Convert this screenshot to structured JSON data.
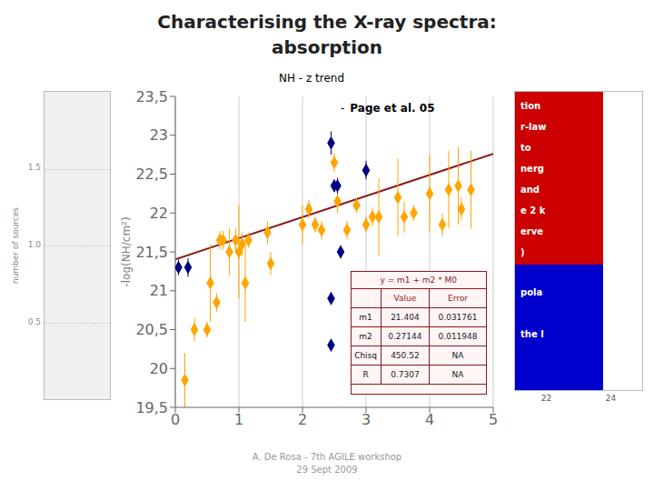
{
  "chart_data": {
    "type": "scatter",
    "title": "Characterising the X-ray spectra:",
    "subtitle": "absorption",
    "chart_title": "NH - z trend",
    "ylabel": "-log(NH/cm²)",
    "xlim": [
      0,
      5
    ],
    "ylim": [
      19.5,
      23.5
    ],
    "xticks": [
      0,
      1,
      2,
      3,
      4,
      5
    ],
    "yticks": [
      {
        "value": 19.5,
        "label": "19,5"
      },
      20,
      {
        "value": 20.5,
        "label": "20,5"
      },
      21,
      {
        "value": 21.5,
        "label": "21,5"
      },
      22,
      {
        "value": 22.5,
        "label": "22,5"
      },
      23,
      {
        "value": 23.5,
        "label": "23,5"
      }
    ],
    "grid": "x",
    "series": [
      {
        "type": "line",
        "color": "#8b1a1a",
        "x": [
          0,
          5
        ],
        "values": [
          21.404,
          22.7612
        ]
      },
      {
        "type": "scatter",
        "color": "#ffa500",
        "marker": "diamond",
        "x": [
          0.15,
          0.3,
          0.5,
          0.55,
          0.65,
          0.7,
          0.75,
          0.85,
          0.95,
          1.0,
          1.05,
          1.1,
          1.15,
          1.45,
          1.5,
          2.0,
          2.1,
          2.2,
          2.3,
          2.5,
          2.55,
          2.7,
          2.85,
          3.0,
          3.1,
          3.2,
          3.5,
          3.6,
          3.75,
          4.0,
          4.2,
          4.3,
          4.45,
          4.5,
          4.65
        ],
        "values": [
          19.85,
          20.5,
          20.5,
          21.1,
          20.85,
          21.65,
          21.65,
          21.5,
          21.65,
          21.5,
          21.6,
          21.1,
          21.65,
          21.75,
          21.35,
          21.85,
          22.05,
          21.85,
          21.78,
          22.65,
          22.15,
          21.78,
          22.1,
          21.85,
          21.95,
          21.95,
          22.2,
          21.95,
          22.0,
          22.25,
          21.85,
          22.3,
          22.35,
          22.05,
          22.3
        ],
        "yerr": [
          0.35,
          0.15,
          0.1,
          0.5,
          0.12,
          0.12,
          0.12,
          0.3,
          0.15,
          0.6,
          0.15,
          0.5,
          0.1,
          0.15,
          0.15,
          0.25,
          0.12,
          0.1,
          0.12,
          0.12,
          0.15,
          0.12,
          0.1,
          0.1,
          0.12,
          0.5,
          0.5,
          0.2,
          0.1,
          0.5,
          0.15,
          0.5,
          0.5,
          0.15,
          0.5
        ]
      },
      {
        "type": "scatter",
        "color": "#000080",
        "marker": "diamond",
        "x": [
          0.05,
          0.2,
          2.45,
          2.45,
          2.45,
          2.5,
          2.55,
          2.6,
          3.0
        ],
        "values": [
          21.3,
          21.3,
          22.9,
          20.9,
          20.3,
          22.35,
          22.35,
          21.5,
          22.55
        ],
        "yerr": [
          0.1,
          0.12,
          0.15,
          0.08,
          0.08,
          0.08,
          0.1,
          0.08,
          0.12
        ]
      }
    ],
    "annotations": [
      "-",
      "Page et al. 05"
    ],
    "table": {
      "title": "y = m1 + m2 * M0",
      "color": "#8b1a1a",
      "rows": [
        [
          null,
          "Value",
          "Error"
        ],
        [
          "m1",
          "21.404",
          "0.031761"
        ],
        [
          "m2",
          "0.27144",
          "0.011948"
        ],
        [
          "Chisq",
          "450.52",
          "NA"
        ],
        [
          "R",
          "0.7307",
          "NA"
        ]
      ]
    },
    "footer": [
      "A. De Rosa - 7th AGILE workshop",
      "29 Sept 2009"
    ],
    "left_panel": {
      "label": "number of sources",
      "ticks": [
        "1.5",
        "1.0",
        "0.5"
      ]
    },
    "right_panel": {
      "ticks": [
        "22",
        "24"
      ],
      "red": {
        "color": "#cc0000",
        "texts": [
          "tion",
          "r-law",
          "to",
          "nerg",
          "and",
          "e 2 k",
          "erve",
          ")"
        ]
      },
      "blue": {
        "color": "#0000cc",
        "texts": [
          "pola",
          "the l"
        ]
      }
    }
  }
}
